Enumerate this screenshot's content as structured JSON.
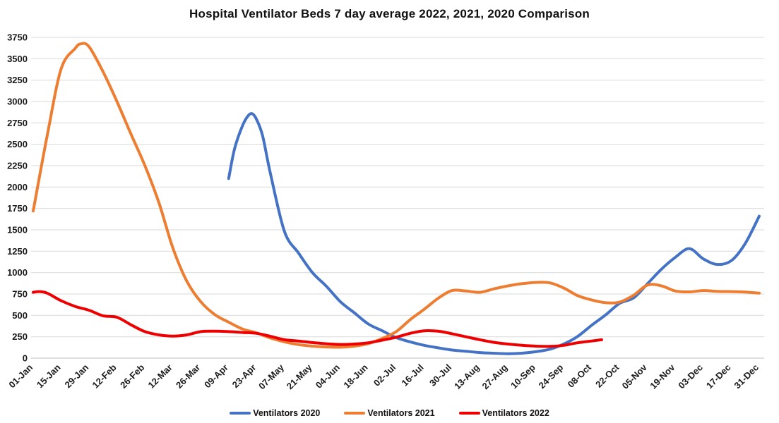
{
  "chart_data": {
    "type": "line",
    "title": "Hospital Ventilator Beds 7 day average 2022, 2021, 2020 Comparison",
    "xlabel": "",
    "ylabel": "",
    "ylim": [
      0,
      3750
    ],
    "y_tick_interval": 250,
    "y_tick_labels": [
      "0",
      "250",
      "500",
      "750",
      "1000",
      "1250",
      "1500",
      "1750",
      "2000",
      "2250",
      "2500",
      "2750",
      "3000",
      "3250",
      "3500",
      "3750"
    ],
    "x_tick_labels": [
      "01-Jan",
      "15-Jan",
      "29-Jan",
      "12-Feb",
      "26-Feb",
      "12-Mar",
      "26-Mar",
      "09-Apr",
      "23-Apr",
      "07-May",
      "21-May",
      "04-Jun",
      "18-Jun",
      "02-Jul",
      "16-Jul",
      "30-Jul",
      "13-Aug",
      "27-Aug",
      "10-Sep",
      "24-Sep",
      "08-Oct",
      "22-Oct",
      "05-Nov",
      "19-Nov",
      "03-Dec",
      "17-Dec",
      "31-Dec"
    ],
    "x_tick_interval_days": 14,
    "x_range_days": [
      0,
      364
    ],
    "grid": "horizontal",
    "legend_position": "bottom",
    "background_color": "#FFFFFF",
    "gridline_color": "#D9D9D9",
    "series": [
      {
        "name": "Ventilators 2020",
        "color": "#4472C4",
        "points": [
          [
            98,
            2100
          ],
          [
            101,
            2450
          ],
          [
            105,
            2720
          ],
          [
            108,
            2840
          ],
          [
            110,
            2855
          ],
          [
            112,
            2790
          ],
          [
            115,
            2600
          ],
          [
            119,
            2150
          ],
          [
            126,
            1480
          ],
          [
            133,
            1230
          ],
          [
            140,
            1000
          ],
          [
            147,
            840
          ],
          [
            154,
            660
          ],
          [
            161,
            530
          ],
          [
            168,
            400
          ],
          [
            175,
            320
          ],
          [
            182,
            240
          ],
          [
            189,
            190
          ],
          [
            196,
            150
          ],
          [
            203,
            120
          ],
          [
            210,
            95
          ],
          [
            217,
            80
          ],
          [
            224,
            65
          ],
          [
            231,
            58
          ],
          [
            238,
            52
          ],
          [
            245,
            58
          ],
          [
            252,
            75
          ],
          [
            259,
            105
          ],
          [
            266,
            165
          ],
          [
            273,
            255
          ],
          [
            280,
            385
          ],
          [
            287,
            505
          ],
          [
            294,
            640
          ],
          [
            301,
            705
          ],
          [
            308,
            870
          ],
          [
            315,
            1040
          ],
          [
            322,
            1180
          ],
          [
            329,
            1280
          ],
          [
            336,
            1160
          ],
          [
            343,
            1095
          ],
          [
            350,
            1140
          ],
          [
            357,
            1340
          ],
          [
            364,
            1660
          ]
        ]
      },
      {
        "name": "Ventilators 2021",
        "color": "#ED7D31",
        "points": [
          [
            0,
            1720
          ],
          [
            7,
            2600
          ],
          [
            14,
            3380
          ],
          [
            21,
            3620
          ],
          [
            24,
            3675
          ],
          [
            28,
            3640
          ],
          [
            35,
            3350
          ],
          [
            42,
            3000
          ],
          [
            49,
            2620
          ],
          [
            56,
            2250
          ],
          [
            63,
            1820
          ],
          [
            70,
            1290
          ],
          [
            77,
            900
          ],
          [
            84,
            660
          ],
          [
            91,
            510
          ],
          [
            98,
            420
          ],
          [
            105,
            340
          ],
          [
            112,
            295
          ],
          [
            119,
            235
          ],
          [
            126,
            190
          ],
          [
            133,
            158
          ],
          [
            140,
            140
          ],
          [
            147,
            130
          ],
          [
            154,
            128
          ],
          [
            161,
            140
          ],
          [
            168,
            170
          ],
          [
            175,
            230
          ],
          [
            182,
            310
          ],
          [
            189,
            450
          ],
          [
            196,
            570
          ],
          [
            203,
            700
          ],
          [
            210,
            790
          ],
          [
            217,
            785
          ],
          [
            224,
            770
          ],
          [
            231,
            810
          ],
          [
            238,
            845
          ],
          [
            245,
            870
          ],
          [
            252,
            885
          ],
          [
            259,
            880
          ],
          [
            266,
            820
          ],
          [
            273,
            730
          ],
          [
            280,
            680
          ],
          [
            287,
            648
          ],
          [
            294,
            655
          ],
          [
            301,
            735
          ],
          [
            308,
            855
          ],
          [
            315,
            845
          ],
          [
            322,
            785
          ],
          [
            329,
            775
          ],
          [
            336,
            790
          ],
          [
            343,
            780
          ],
          [
            350,
            778
          ],
          [
            357,
            772
          ],
          [
            364,
            760
          ]
        ]
      },
      {
        "name": "Ventilators 2022",
        "color": "#EF0000",
        "points": [
          [
            0,
            770
          ],
          [
            3,
            778
          ],
          [
            7,
            760
          ],
          [
            14,
            672
          ],
          [
            21,
            605
          ],
          [
            28,
            560
          ],
          [
            35,
            495
          ],
          [
            42,
            478
          ],
          [
            49,
            390
          ],
          [
            56,
            310
          ],
          [
            63,
            272
          ],
          [
            70,
            258
          ],
          [
            77,
            272
          ],
          [
            84,
            310
          ],
          [
            91,
            315
          ],
          [
            98,
            310
          ],
          [
            105,
            300
          ],
          [
            112,
            290
          ],
          [
            119,
            255
          ],
          [
            126,
            215
          ],
          [
            133,
            200
          ],
          [
            140,
            182
          ],
          [
            147,
            168
          ],
          [
            154,
            160
          ],
          [
            161,
            165
          ],
          [
            168,
            180
          ],
          [
            175,
            210
          ],
          [
            182,
            245
          ],
          [
            189,
            290
          ],
          [
            196,
            320
          ],
          [
            203,
            315
          ],
          [
            210,
            285
          ],
          [
            217,
            250
          ],
          [
            224,
            215
          ],
          [
            231,
            185
          ],
          [
            238,
            165
          ],
          [
            245,
            150
          ],
          [
            252,
            140
          ],
          [
            259,
            138
          ],
          [
            266,
            150
          ],
          [
            273,
            180
          ],
          [
            280,
            200
          ],
          [
            285,
            215
          ]
        ]
      }
    ]
  }
}
